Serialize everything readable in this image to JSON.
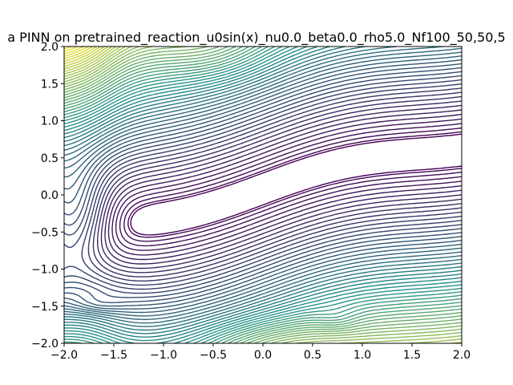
{
  "chart_data": {
    "type": "contour",
    "title": "a PINN on pretrained_reaction_u0sin(x)_nu0.0_beta0.0_rho5.0_Nf100_50,50,5",
    "xlabel": "",
    "ylabel": "",
    "xlim": [
      -2.0,
      2.0
    ],
    "ylim": [
      -2.0,
      2.0
    ],
    "xticks": [
      -2.0,
      -1.5,
      -1.0,
      -0.5,
      0.0,
      0.5,
      1.0,
      1.5,
      2.0
    ],
    "xtick_labels": [
      "−2.0",
      "−1.5",
      "−1.0",
      "−0.5",
      "0.0",
      "0.5",
      "1.0",
      "1.5",
      "2.0"
    ],
    "yticks": [
      -2.0,
      -1.5,
      -1.0,
      -0.5,
      0.0,
      0.5,
      1.0,
      1.5,
      2.0
    ],
    "ytick_labels": [
      "−2.0",
      "−1.5",
      "−1.0",
      "−0.5",
      "0.0",
      "0.5",
      "1.0",
      "1.5",
      "2.0"
    ],
    "colormap": "viridis",
    "colors": {
      "low": "#440154",
      "mid": "#21918c",
      "high": "#fde725"
    },
    "grid": false,
    "legend": "none",
    "description_of_field": "Loss landscape contour lines; a low valley extends from x=-1.9,y=-0.2 to the right edge between y=0.0 and y=1.0; high values near bottom edge around x=0, y=-2 and at the top left around x=-0.6, y=2."
  }
}
